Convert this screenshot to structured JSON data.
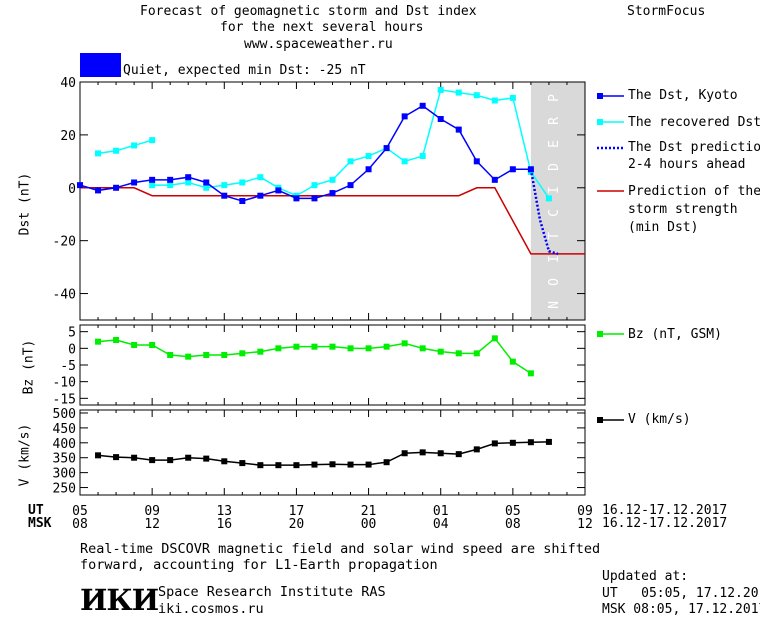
{
  "header": {
    "title_line1": "Forecast of geomagnetic storm and Dst index",
    "title_line2": "for the next several hours",
    "url": "www.spaceweather.ru",
    "brand": "StormFocus",
    "status_text": "Quiet, expected min Dst: -25 nT",
    "status_color": "#0000ff"
  },
  "axes": {
    "dst_label": "Dst (nT)",
    "bz_label": "Bz (nT)",
    "v_label": "V (km/s)",
    "ut_label": "UT",
    "msk_label": "MSK",
    "ut_ticks": [
      "05",
      "09",
      "13",
      "17",
      "21",
      "01",
      "05",
      "09"
    ],
    "msk_ticks": [
      "08",
      "12",
      "16",
      "20",
      "00",
      "04",
      "08",
      "12"
    ],
    "date_range": "16.12-17.12.2017",
    "prediction_label": "PREDICTION"
  },
  "legend": {
    "dst_kyoto": "The Dst, Kyoto",
    "recovered": "The recovered Dst",
    "prediction_line1": "The Dst prediction",
    "prediction_line2": "2-4 hours ahead",
    "strength_line1": "Prediction of the",
    "strength_line2": "storm strength",
    "strength_line3": "(min Dst)",
    "bz": "Bz (nT, GSM)",
    "v": "V (km/s)"
  },
  "footer": {
    "note_line1": "Real-time DSCOVR magnetic field and solar wind speed are shifted",
    "note_line2": "forward, accounting for L1-Earth propagation",
    "institute": "Space Research Institute RAS",
    "site": "iki.cosmos.ru",
    "logo_text": "ИКИ",
    "updated_label": "Updated at:",
    "updated_ut": "UT   05:05, 17.12.2017",
    "updated_msk": "MSK 08:05, 17.12.2017"
  },
  "chart_data": [
    {
      "type": "line",
      "panel": "dst",
      "ylabel": "Dst (nT)",
      "xlabel": "UT",
      "x_unit": "hours since 05 UT 16.12.2017",
      "xlim": [
        0,
        28
      ],
      "ylim": [
        -50,
        40
      ],
      "yticks": [
        40,
        20,
        0,
        -20,
        -40
      ],
      "prediction_region": [
        25,
        28
      ],
      "series": [
        {
          "name": "The Dst, Kyoto",
          "color": "#0000ff",
          "marker": "square",
          "x": [
            0,
            1,
            2,
            3,
            4,
            5,
            6,
            7,
            8,
            9,
            10,
            11,
            12,
            13,
            14,
            15,
            16,
            17,
            18,
            19,
            20,
            21,
            22,
            23,
            24,
            25
          ],
          "y": [
            1,
            -1,
            0,
            2,
            3,
            3,
            4,
            2,
            -3,
            -5,
            -3,
            -1,
            -4,
            -4,
            -2,
            1,
            7,
            15,
            27,
            31,
            26,
            22,
            10,
            3,
            7,
            7
          ]
        },
        {
          "name": "The recovered Dst",
          "color": "#00ffff",
          "marker": "square",
          "x": [
            1,
            2,
            3,
            4
          ],
          "y": [
            13,
            14,
            16,
            18
          ]
        },
        {
          "name": "The recovered Dst",
          "color": "#00ffff",
          "marker": "square",
          "x": [
            4,
            5,
            6,
            7,
            8,
            9,
            10,
            11,
            12,
            13,
            14,
            15,
            16,
            17,
            18,
            19,
            20,
            21,
            22,
            23,
            24,
            25,
            26
          ],
          "y": [
            1,
            1,
            2,
            0,
            1,
            2,
            4,
            0,
            -3,
            1,
            3,
            10,
            12,
            15,
            10,
            12,
            37,
            36,
            35,
            33,
            34,
            6,
            -4
          ]
        },
        {
          "name": "The Dst prediction 2-4 hours ahead",
          "color": "#0000ff",
          "style": "dotted",
          "x": [
            25,
            25.5,
            26,
            26.5
          ],
          "y": [
            7,
            -12,
            -24,
            -25
          ]
        },
        {
          "name": "Prediction of the storm strength (min Dst)",
          "color": "#cc0000",
          "x": [
            0,
            3,
            4,
            21,
            22,
            23,
            23.8,
            25,
            28
          ],
          "y": [
            0,
            0,
            -3,
            -3,
            0,
            0,
            -10,
            -25,
            -25
          ]
        }
      ]
    },
    {
      "type": "line",
      "panel": "bz",
      "ylabel": "Bz (nT)",
      "xlim": [
        0,
        28
      ],
      "ylim": [
        -17,
        7
      ],
      "yticks": [
        5,
        0,
        -5,
        -10,
        -15
      ],
      "series": [
        {
          "name": "Bz (nT, GSM)",
          "color": "#00ee00",
          "marker": "square",
          "x": [
            1,
            2,
            3,
            4,
            5,
            6,
            7,
            8,
            9,
            10,
            11,
            12,
            13,
            14,
            15,
            16,
            17,
            18,
            19,
            20,
            21,
            22,
            23,
            24,
            25,
            26
          ],
          "y": [
            2,
            2.5,
            1,
            1,
            -2,
            -2.5,
            -2,
            -2,
            -1.5,
            -1,
            0,
            0.5,
            0.5,
            0.5,
            0,
            0,
            0.5,
            1.5,
            0,
            -1,
            -1.5,
            -1.5,
            3,
            -4,
            -7.5,
            null
          ]
        }
      ]
    },
    {
      "type": "line",
      "panel": "v",
      "ylabel": "V (km/s)",
      "xlim": [
        0,
        28
      ],
      "ylim": [
        225,
        510
      ],
      "yticks": [
        500,
        450,
        400,
        350,
        300,
        250
      ],
      "series": [
        {
          "name": "V (km/s)",
          "color": "#000000",
          "marker": "square",
          "x": [
            1,
            2,
            3,
            4,
            5,
            6,
            7,
            8,
            9,
            10,
            11,
            12,
            13,
            14,
            15,
            16,
            17,
            18,
            19,
            20,
            21,
            22,
            23,
            24,
            25,
            26
          ],
          "y": [
            358,
            352,
            350,
            342,
            342,
            350,
            347,
            338,
            332,
            325,
            325,
            325,
            327,
            328,
            327,
            327,
            335,
            365,
            368,
            365,
            362,
            378,
            398,
            400,
            402,
            403
          ]
        }
      ]
    }
  ]
}
